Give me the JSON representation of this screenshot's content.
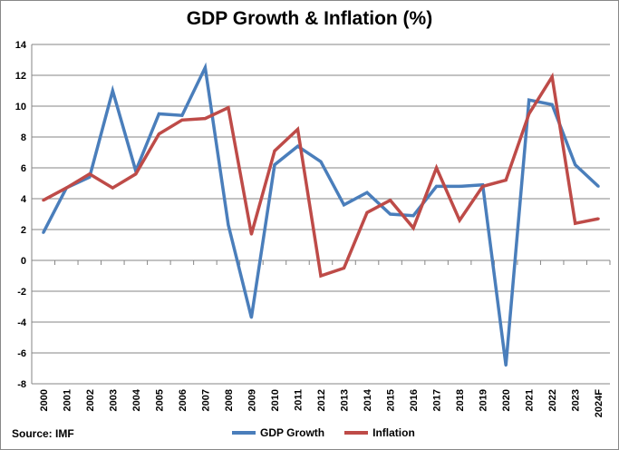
{
  "chart_data": {
    "type": "line",
    "title": "GDP Growth & Inflation (%)",
    "categories": [
      "2000",
      "2001",
      "2002",
      "2003",
      "2004",
      "2005",
      "2006",
      "2007",
      "2008",
      "2009",
      "2010",
      "2011",
      "2012",
      "2013",
      "2014",
      "2015",
      "2016",
      "2017",
      "2018",
      "2019",
      "2020",
      "2021",
      "2022",
      "2023",
      "2024F"
    ],
    "series": [
      {
        "name": "GDP Growth",
        "color": "#4a7ebb",
        "values": [
          1.8,
          4.7,
          5.4,
          11.0,
          5.8,
          9.5,
          9.4,
          12.5,
          2.3,
          -3.7,
          6.2,
          7.4,
          6.4,
          3.6,
          4.4,
          3.0,
          2.9,
          4.8,
          4.8,
          4.9,
          -6.8,
          10.4,
          10.1,
          6.2,
          4.8
        ]
      },
      {
        "name": "Inflation",
        "color": "#be4b48",
        "values": [
          3.9,
          4.7,
          5.6,
          4.7,
          5.6,
          8.2,
          9.1,
          9.2,
          9.9,
          1.7,
          7.1,
          8.5,
          -1.0,
          -0.5,
          3.1,
          3.9,
          2.1,
          6.0,
          2.6,
          4.8,
          5.2,
          9.5,
          11.9,
          2.4,
          2.7
        ]
      }
    ],
    "ylim": [
      -8,
      14
    ],
    "yticks": [
      14,
      12,
      10,
      8,
      6,
      4,
      2,
      0,
      -2,
      -4,
      -6,
      -8
    ],
    "grid": true,
    "legend": "bottom",
    "xlabel": "",
    "ylabel": ""
  },
  "source": "Source:  IMF"
}
